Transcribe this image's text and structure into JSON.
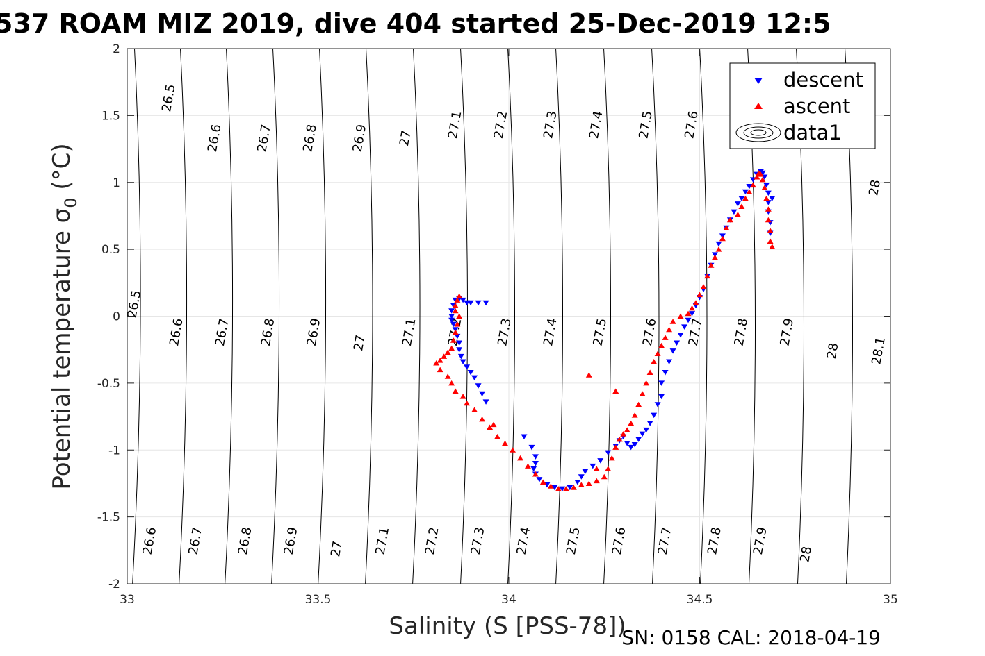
{
  "chart_data": {
    "type": "scatter",
    "title": "537 ROAM MIZ 2019, dive 404 started 25-Dec-2019 12:5",
    "xlabel": "Salinity (S [PSS-78])",
    "ylabel_main": "Potential temperature ",
    "ylabel_sym": "σ",
    "ylabel_sub": "0",
    "ylabel_unit": " (°C)",
    "footer": "SN: 0158  CAL: 2018-04-19",
    "xlim": [
      33,
      35
    ],
    "ylim": [
      -2,
      2
    ],
    "xticks": [
      "33",
      "33.5",
      "34",
      "34.5",
      "35"
    ],
    "yticks": [
      "-2",
      "-1.5",
      "-1",
      "-0.5",
      "0",
      "0.5",
      "1",
      "1.5",
      "2"
    ],
    "grid": true,
    "legend_placement": "top-right",
    "legend": [
      {
        "label": "descent",
        "marker": "triangle-down",
        "color": "#0000ff"
      },
      {
        "label": "ascent",
        "marker": "triangle-up",
        "color": "#ff0000"
      },
      {
        "label": "data1",
        "marker": "contour",
        "color": "#000000"
      }
    ],
    "contour_labels": [
      {
        "text": "26.5",
        "x": 33.11,
        "y": 1.63
      },
      {
        "text": "26.6",
        "x": 33.23,
        "y": 1.33
      },
      {
        "text": "26.7",
        "x": 33.36,
        "y": 1.33
      },
      {
        "text": "26.8",
        "x": 33.48,
        "y": 1.33
      },
      {
        "text": "26.9",
        "x": 33.61,
        "y": 1.33
      },
      {
        "text": "27",
        "x": 33.73,
        "y": 1.33
      },
      {
        "text": "27.1",
        "x": 33.86,
        "y": 1.43
      },
      {
        "text": "27.2",
        "x": 33.98,
        "y": 1.43
      },
      {
        "text": "27.3",
        "x": 34.11,
        "y": 1.43
      },
      {
        "text": "27.4",
        "x": 34.23,
        "y": 1.43
      },
      {
        "text": "27.5",
        "x": 34.36,
        "y": 1.43
      },
      {
        "text": "27.6",
        "x": 34.48,
        "y": 1.43
      },
      {
        "text": "28",
        "x": 34.96,
        "y": 0.96
      },
      {
        "text": "26.5",
        "x": 33.02,
        "y": 0.09
      },
      {
        "text": "26.6",
        "x": 33.13,
        "y": -0.12
      },
      {
        "text": "26.7",
        "x": 33.25,
        "y": -0.12
      },
      {
        "text": "26.8",
        "x": 33.37,
        "y": -0.12
      },
      {
        "text": "26.9",
        "x": 33.49,
        "y": -0.12
      },
      {
        "text": "27",
        "x": 33.61,
        "y": -0.2
      },
      {
        "text": "27.1",
        "x": 33.74,
        "y": -0.12
      },
      {
        "text": "27.2",
        "x": 33.86,
        "y": -0.12
      },
      {
        "text": "27.3",
        "x": 33.99,
        "y": -0.12
      },
      {
        "text": "27.4",
        "x": 34.11,
        "y": -0.12
      },
      {
        "text": "27.5",
        "x": 34.24,
        "y": -0.12
      },
      {
        "text": "27.6",
        "x": 34.37,
        "y": -0.12
      },
      {
        "text": "27.7",
        "x": 34.49,
        "y": -0.12
      },
      {
        "text": "27.8",
        "x": 34.61,
        "y": -0.12
      },
      {
        "text": "27.9",
        "x": 34.73,
        "y": -0.12
      },
      {
        "text": "28",
        "x": 34.85,
        "y": -0.26
      },
      {
        "text": "28.1",
        "x": 34.97,
        "y": -0.26
      },
      {
        "text": "26.6",
        "x": 33.06,
        "y": -1.68
      },
      {
        "text": "26.7",
        "x": 33.18,
        "y": -1.68
      },
      {
        "text": "26.8",
        "x": 33.31,
        "y": -1.68
      },
      {
        "text": "26.9",
        "x": 33.43,
        "y": -1.68
      },
      {
        "text": "27",
        "x": 33.55,
        "y": -1.74
      },
      {
        "text": "27.1",
        "x": 33.67,
        "y": -1.68
      },
      {
        "text": "27.2",
        "x": 33.8,
        "y": -1.68
      },
      {
        "text": "27.3",
        "x": 33.92,
        "y": -1.68
      },
      {
        "text": "27.4",
        "x": 34.04,
        "y": -1.68
      },
      {
        "text": "27.5",
        "x": 34.17,
        "y": -1.68
      },
      {
        "text": "27.6",
        "x": 34.29,
        "y": -1.68
      },
      {
        "text": "27.7",
        "x": 34.41,
        "y": -1.68
      },
      {
        "text": "27.8",
        "x": 34.54,
        "y": -1.68
      },
      {
        "text": "27.9",
        "x": 34.66,
        "y": -1.68
      },
      {
        "text": "28",
        "x": 34.78,
        "y": -1.78
      }
    ],
    "series": [
      {
        "name": "descent",
        "marker": "triangle-down",
        "color": "#0000ff",
        "points": [
          [
            33.94,
            0.1
          ],
          [
            33.92,
            0.1
          ],
          [
            33.9,
            0.1
          ],
          [
            33.89,
            0.1
          ],
          [
            33.88,
            0.12
          ],
          [
            33.87,
            0.13
          ],
          [
            33.86,
            0.12
          ],
          [
            33.855,
            0.08
          ],
          [
            33.85,
            0.04
          ],
          [
            33.85,
            0.0
          ],
          [
            33.85,
            -0.03
          ],
          [
            33.855,
            -0.06
          ],
          [
            33.86,
            -0.1
          ],
          [
            33.865,
            -0.15
          ],
          [
            33.87,
            -0.2
          ],
          [
            33.87,
            -0.25
          ],
          [
            33.875,
            -0.3
          ],
          [
            33.88,
            -0.34
          ],
          [
            33.89,
            -0.38
          ],
          [
            33.9,
            -0.42
          ],
          [
            33.91,
            -0.46
          ],
          [
            33.92,
            -0.52
          ],
          [
            33.93,
            -0.58
          ],
          [
            33.94,
            -0.64
          ],
          [
            34.04,
            -0.9
          ],
          [
            34.06,
            -0.98
          ],
          [
            34.07,
            -1.05
          ],
          [
            34.07,
            -1.1
          ],
          [
            34.065,
            -1.14
          ],
          [
            34.07,
            -1.18
          ],
          [
            34.08,
            -1.22
          ],
          [
            34.1,
            -1.26
          ],
          [
            34.12,
            -1.28
          ],
          [
            34.14,
            -1.29
          ],
          [
            34.16,
            -1.28
          ],
          [
            34.18,
            -1.24
          ],
          [
            34.19,
            -1.2
          ],
          [
            34.2,
            -1.16
          ],
          [
            34.22,
            -1.12
          ],
          [
            34.24,
            -1.08
          ],
          [
            34.26,
            -1.02
          ],
          [
            34.28,
            -0.97
          ],
          [
            34.29,
            -0.93
          ],
          [
            34.3,
            -0.9
          ],
          [
            34.31,
            -0.95
          ],
          [
            34.32,
            -0.98
          ],
          [
            34.33,
            -0.96
          ],
          [
            34.34,
            -0.92
          ],
          [
            34.35,
            -0.88
          ],
          [
            34.36,
            -0.85
          ],
          [
            34.37,
            -0.8
          ],
          [
            34.38,
            -0.74
          ],
          [
            34.39,
            -0.66
          ],
          [
            34.4,
            -0.6
          ],
          [
            34.4,
            -0.5
          ],
          [
            34.41,
            -0.42
          ],
          [
            34.42,
            -0.34
          ],
          [
            34.43,
            -0.26
          ],
          [
            34.44,
            -0.2
          ],
          [
            34.45,
            -0.14
          ],
          [
            34.46,
            -0.08
          ],
          [
            34.47,
            -0.03
          ],
          [
            34.48,
            0.02
          ],
          [
            34.49,
            0.08
          ],
          [
            34.5,
            0.14
          ],
          [
            34.51,
            0.2
          ],
          [
            34.52,
            0.3
          ],
          [
            34.53,
            0.38
          ],
          [
            34.54,
            0.46
          ],
          [
            34.55,
            0.54
          ],
          [
            34.56,
            0.6
          ],
          [
            34.57,
            0.66
          ],
          [
            34.58,
            0.72
          ],
          [
            34.59,
            0.78
          ],
          [
            34.6,
            0.84
          ],
          [
            34.61,
            0.88
          ],
          [
            34.62,
            0.93
          ],
          [
            34.63,
            0.97
          ],
          [
            34.64,
            1.02
          ],
          [
            34.65,
            1.06
          ],
          [
            34.66,
            1.08
          ],
          [
            34.665,
            1.07
          ],
          [
            34.67,
            1.04
          ],
          [
            34.675,
            0.98
          ],
          [
            34.68,
            0.92
          ],
          [
            34.68,
            0.85
          ],
          [
            34.68,
            0.78
          ],
          [
            34.685,
            0.7
          ],
          [
            34.685,
            0.62
          ],
          [
            34.69,
            0.88
          ]
        ]
      },
      {
        "name": "ascent",
        "marker": "triangle-up",
        "color": "#ff0000",
        "points": [
          [
            33.87,
            0.15
          ],
          [
            33.865,
            0.12
          ],
          [
            33.86,
            0.08
          ],
          [
            33.86,
            0.04
          ],
          [
            33.87,
            0.0
          ],
          [
            33.865,
            -0.06
          ],
          [
            33.86,
            -0.12
          ],
          [
            33.855,
            -0.18
          ],
          [
            33.85,
            -0.24
          ],
          [
            33.84,
            -0.27
          ],
          [
            33.83,
            -0.3
          ],
          [
            33.82,
            -0.33
          ],
          [
            33.81,
            -0.35
          ],
          [
            33.82,
            -0.4
          ],
          [
            33.84,
            -0.45
          ],
          [
            33.85,
            -0.5
          ],
          [
            33.86,
            -0.56
          ],
          [
            33.88,
            -0.6
          ],
          [
            33.89,
            -0.65
          ],
          [
            33.91,
            -0.7
          ],
          [
            33.93,
            -0.77
          ],
          [
            33.95,
            -0.83
          ],
          [
            33.97,
            -0.9
          ],
          [
            33.99,
            -0.95
          ],
          [
            34.01,
            -1.0
          ],
          [
            34.03,
            -1.06
          ],
          [
            34.05,
            -1.12
          ],
          [
            34.07,
            -1.18
          ],
          [
            34.09,
            -1.24
          ],
          [
            34.11,
            -1.27
          ],
          [
            34.13,
            -1.29
          ],
          [
            34.15,
            -1.29
          ],
          [
            34.17,
            -1.28
          ],
          [
            34.19,
            -1.26
          ],
          [
            34.21,
            -1.25
          ],
          [
            34.23,
            -1.23
          ],
          [
            34.25,
            -1.2
          ],
          [
            34.26,
            -1.14
          ],
          [
            34.27,
            -1.06
          ],
          [
            34.28,
            -0.98
          ],
          [
            34.29,
            -0.92
          ],
          [
            34.3,
            -0.88
          ],
          [
            34.31,
            -0.85
          ],
          [
            34.32,
            -0.8
          ],
          [
            34.33,
            -0.74
          ],
          [
            34.34,
            -0.66
          ],
          [
            34.35,
            -0.58
          ],
          [
            34.36,
            -0.5
          ],
          [
            34.37,
            -0.42
          ],
          [
            34.38,
            -0.34
          ],
          [
            34.39,
            -0.28
          ],
          [
            34.4,
            -0.22
          ],
          [
            34.41,
            -0.16
          ],
          [
            34.42,
            -0.1
          ],
          [
            34.43,
            -0.04
          ],
          [
            34.45,
            0.0
          ],
          [
            34.47,
            0.02
          ],
          [
            34.48,
            0.06
          ],
          [
            34.49,
            0.1
          ],
          [
            34.5,
            0.16
          ],
          [
            34.51,
            0.22
          ],
          [
            34.52,
            0.3
          ],
          [
            34.53,
            0.38
          ],
          [
            34.54,
            0.44
          ],
          [
            34.55,
            0.5
          ],
          [
            34.56,
            0.58
          ],
          [
            34.57,
            0.66
          ],
          [
            34.58,
            0.72
          ],
          [
            34.6,
            0.76
          ],
          [
            34.61,
            0.82
          ],
          [
            34.62,
            0.88
          ],
          [
            34.63,
            0.93
          ],
          [
            34.64,
            0.98
          ],
          [
            34.65,
            1.04
          ],
          [
            34.655,
            1.07
          ],
          [
            34.66,
            1.06
          ],
          [
            34.665,
            1.02
          ],
          [
            34.67,
            0.96
          ],
          [
            34.675,
            0.88
          ],
          [
            34.68,
            0.8
          ],
          [
            34.68,
            0.72
          ],
          [
            34.685,
            0.64
          ],
          [
            34.685,
            0.56
          ],
          [
            34.69,
            0.52
          ],
          [
            34.21,
            -0.44
          ],
          [
            34.28,
            -0.56
          ],
          [
            34.23,
            -1.14
          ],
          [
            33.96,
            -0.81
          ]
        ]
      }
    ]
  }
}
